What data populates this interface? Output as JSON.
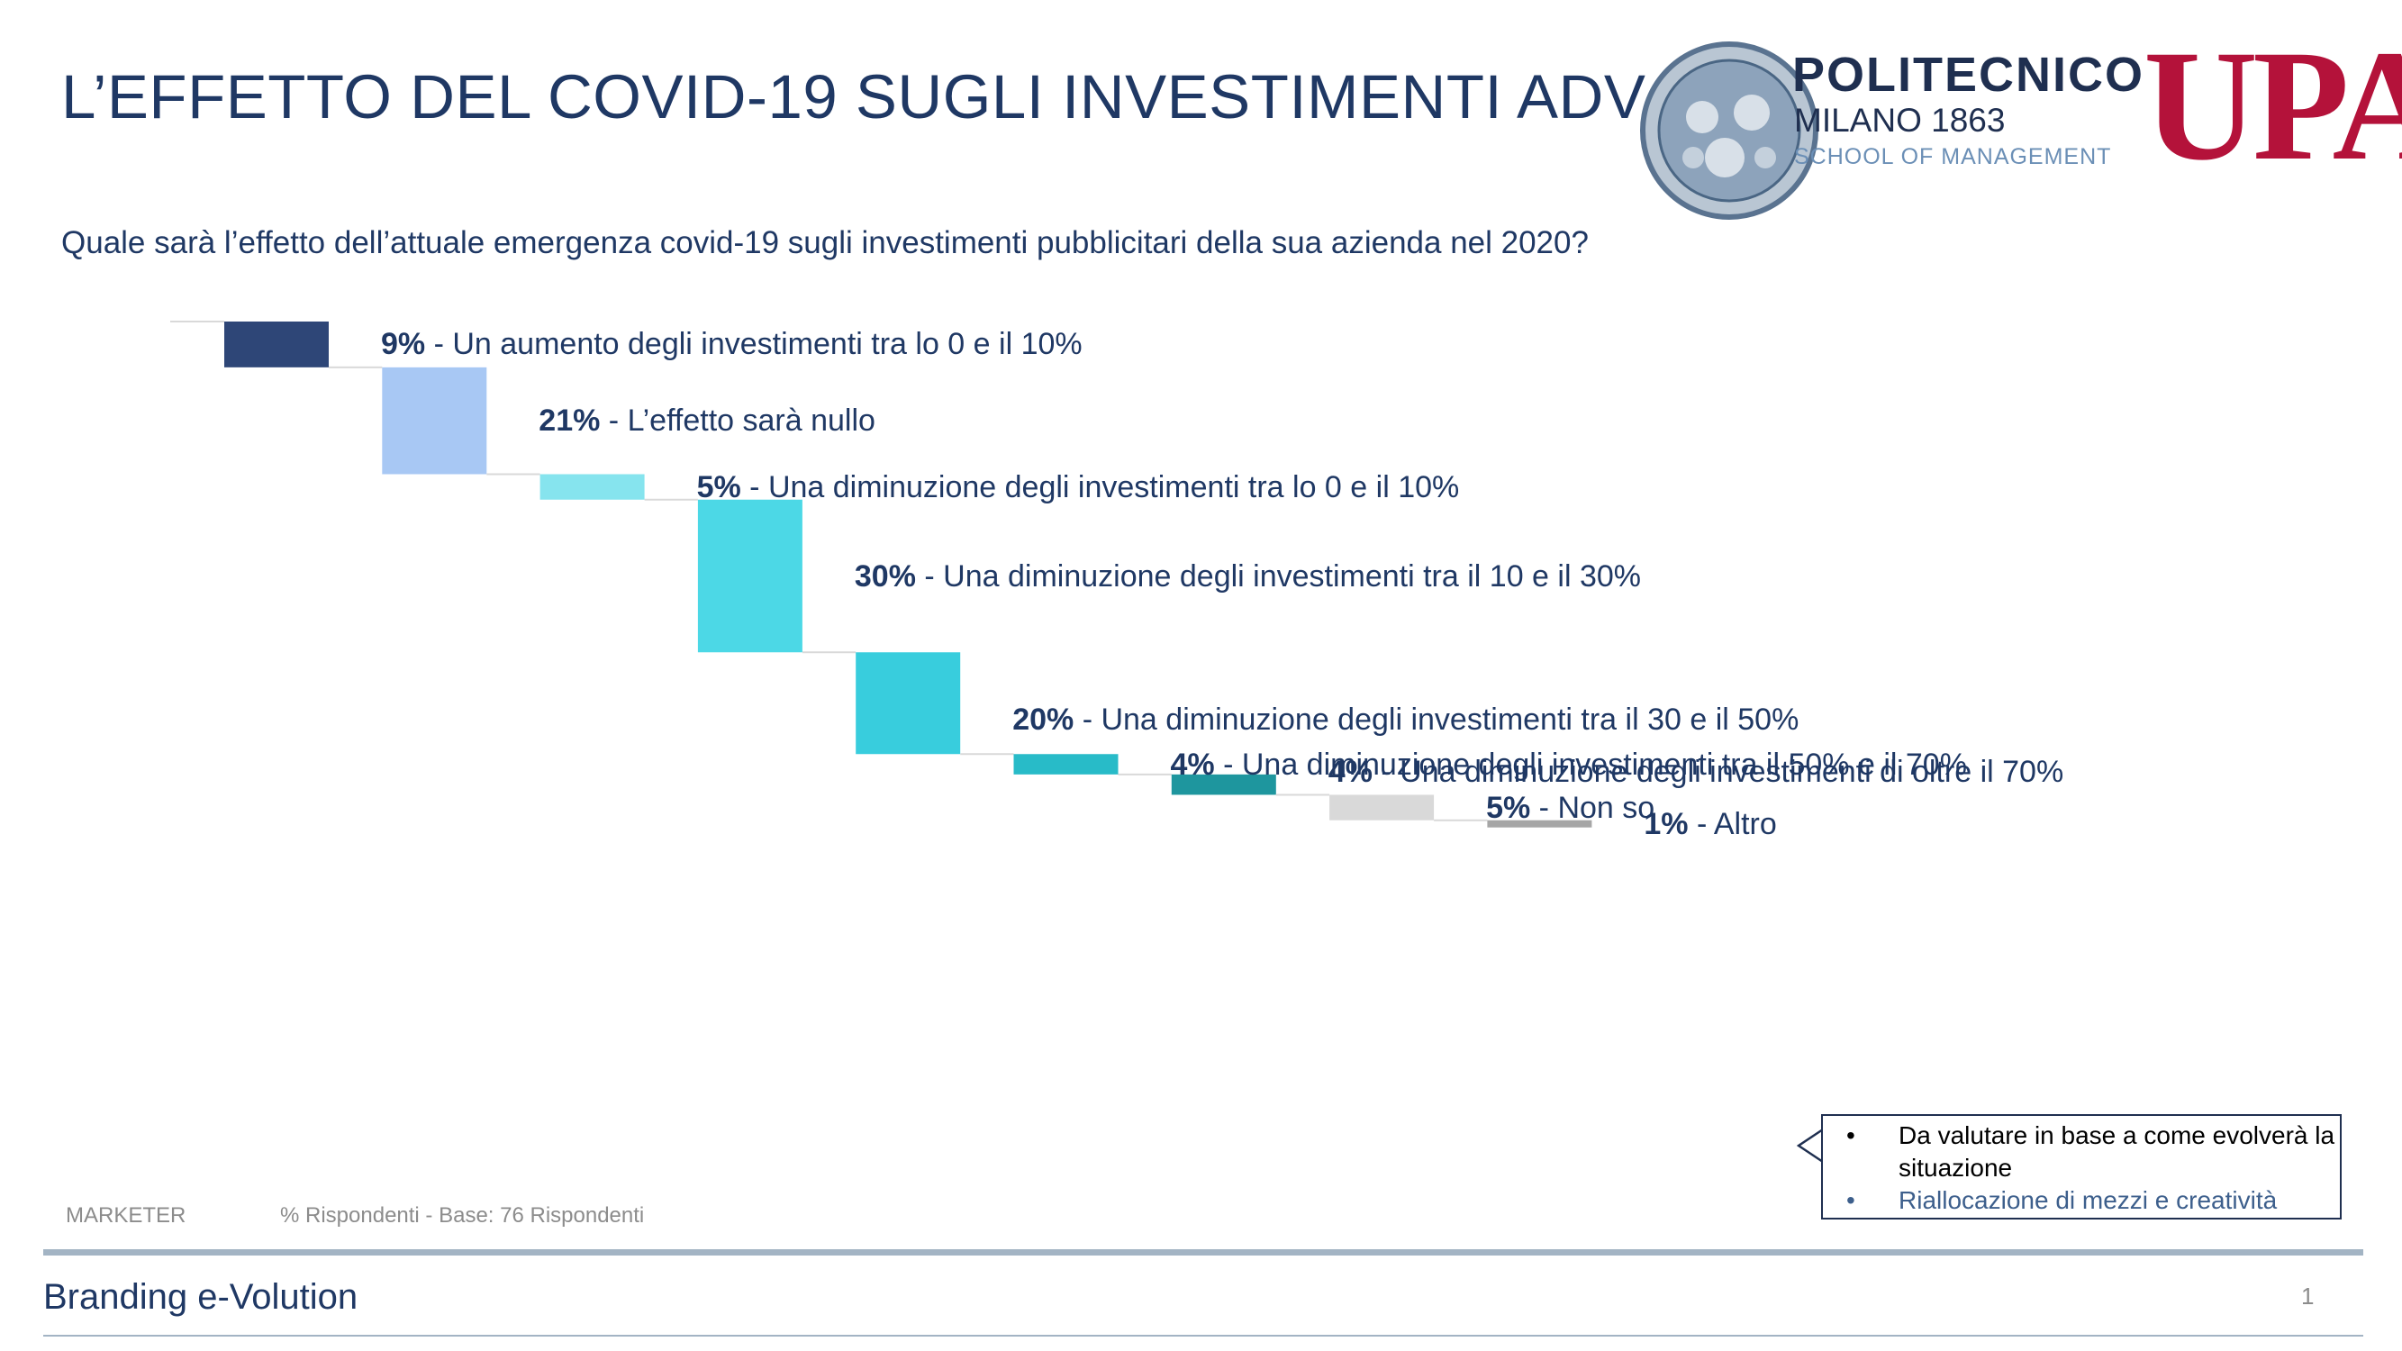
{
  "header": {
    "title": "L’EFFETTO DEL COVID-19 SUGLI INVESTIMENTI ADV",
    "logo_politecnico_line1": "POLITECNICO",
    "logo_politecnico_line2": "MILANO 1863",
    "logo_politecnico_line3": "SCHOOL OF MANAGEMENT",
    "logo_upa": "UPA"
  },
  "question": "Quale sarà l’effetto dell’attuale emergenza covid-19 sugli investimenti pubblicitari della sua azienda nel 2020?",
  "chart_data": {
    "type": "bar",
    "subtype": "waterfall",
    "categories": [
      "Un aumento degli investimenti tra lo 0 e il 10%",
      "L’effetto sarà nullo",
      "Una diminuzione degli investimenti tra lo 0 e il 10%",
      "Una diminuzione degli investimenti tra il 10 e il 30%",
      "Una diminuzione degli investimenti tra il 30 e il 50%",
      "Una diminuzione degli investimenti tra il 50% e il 70%",
      "Una diminuzione degli investimenti di oltre il 70%",
      "Non so",
      "Altro"
    ],
    "values": [
      9,
      21,
      5,
      30,
      20,
      4,
      4,
      5,
      1
    ],
    "value_labels": [
      "9%",
      "21%",
      "5%",
      "30%",
      "20%",
      "4%",
      "4%",
      "5%",
      "1%"
    ],
    "colors": [
      "#2e4677",
      "#a8c8f4",
      "#86e4ee",
      "#4cd8e6",
      "#38cddd",
      "#28bbc8",
      "#1e969e",
      "#d9d9d9",
      "#a6a6a6"
    ],
    "connector_color": "#d9d9d9"
  },
  "footnotes": {
    "segment": "MARKETER",
    "base": "% Rispondenti - Base: 76 Rispondenti"
  },
  "callout": {
    "bullet": "•",
    "items": [
      "Da valutare in base a come evolverà la situazione",
      "Riallocazione di mezzi e creatività"
    ]
  },
  "footer": {
    "brand": "Branding e-Volution",
    "page": "1"
  }
}
